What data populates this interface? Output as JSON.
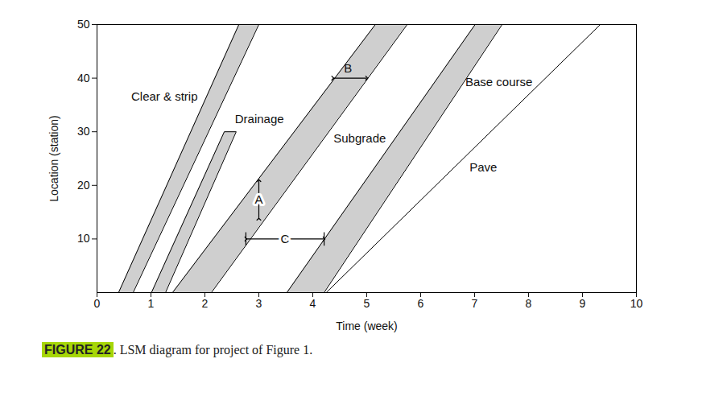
{
  "chart_data": {
    "type": "lsm",
    "xlabel": "Time (week)",
    "ylabel": "Location (station)",
    "xlim": [
      0,
      10
    ],
    "ylim": [
      0,
      50
    ],
    "xticks": [
      0,
      1,
      2,
      3,
      4,
      5,
      6,
      7,
      8,
      9,
      10
    ],
    "yticks": [
      10,
      20,
      30,
      40,
      50
    ],
    "grid": false,
    "series": [
      {
        "name": "Clear & strip",
        "type": "band",
        "color": "#cfcfcf",
        "y": [
          0,
          50
        ],
        "x_start": [
          0.4,
          0.67
        ],
        "x_finish": [
          2.63,
          3.0
        ],
        "label_x": 1.25,
        "label_y": 36.5
      },
      {
        "name": "Drainage",
        "type": "band",
        "color": "#cfcfcf",
        "y": [
          0,
          30
        ],
        "x_start": [
          1.01,
          1.27
        ],
        "x_finish": [
          2.36,
          2.58
        ],
        "label_x": 3.01,
        "label_y": 32.3
      },
      {
        "name": "Subgrade",
        "type": "band",
        "color": "#cfcfcf",
        "y": [
          0,
          50
        ],
        "x_start": [
          1.4,
          2.12
        ],
        "x_finish": [
          5.16,
          5.75
        ],
        "label_x": 4.87,
        "label_y": 28.7
      },
      {
        "name": "Base course",
        "type": "band",
        "color": "#cfcfcf",
        "y": [
          0,
          50
        ],
        "x_start": [
          3.52,
          4.21
        ],
        "x_finish": [
          7.01,
          7.51
        ],
        "label_x": 7.45,
        "label_y": 39.3
      },
      {
        "name": "Pave",
        "type": "line",
        "color": "#000000",
        "y": [
          0,
          50
        ],
        "x": [
          4.25,
          9.33
        ],
        "label_x": 7.16,
        "label_y": 23.3
      }
    ],
    "annotations": [
      {
        "text": "A",
        "marker": "arrow",
        "x": [
          3.0,
          3.0
        ],
        "y": [
          13.7,
          20.9
        ]
      },
      {
        "text": "B",
        "marker": "arrow",
        "x": [
          4.37,
          5.0
        ],
        "y": [
          40,
          40
        ]
      },
      {
        "text": "C",
        "marker": "bar",
        "x": [
          2.76,
          4.21
        ],
        "y": [
          10,
          10
        ]
      }
    ],
    "caption": {
      "label": "FIGURE 22",
      "text": ". LSM diagram for project of Figure 1."
    }
  }
}
